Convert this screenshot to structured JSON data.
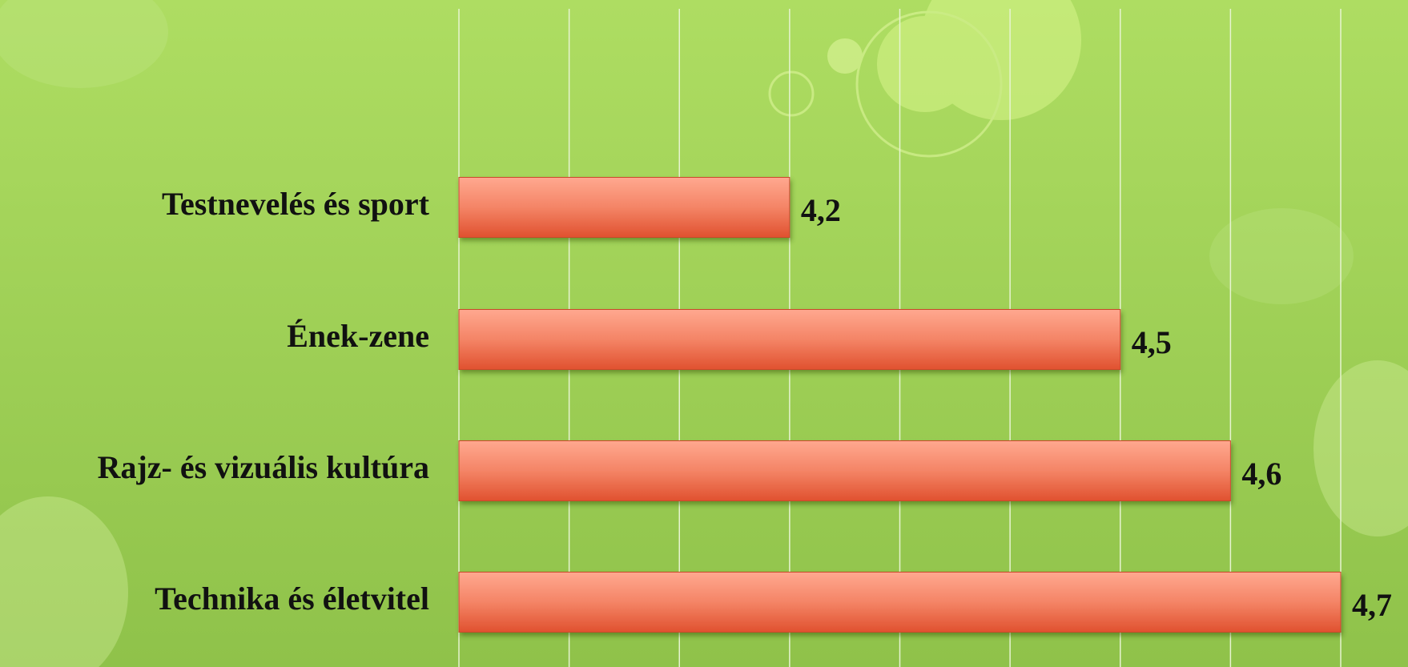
{
  "chart_data": {
    "type": "bar",
    "categories": [
      "Testnevelés és sport",
      "Ének-zene",
      "Rajz- és vizuális kultúra",
      "Technika és életvitel"
    ],
    "values": [
      4.2,
      4.5,
      4.6,
      4.7
    ],
    "value_labels": [
      "4,2",
      "4,5",
      "4,6",
      "4,7"
    ],
    "color": "#e8573a",
    "xlim": [
      3.9,
      4.7
    ],
    "xticks": [
      3.9,
      4.0,
      4.1,
      4.2,
      4.3,
      4.4,
      4.5,
      4.6,
      4.7
    ],
    "grid": true
  }
}
